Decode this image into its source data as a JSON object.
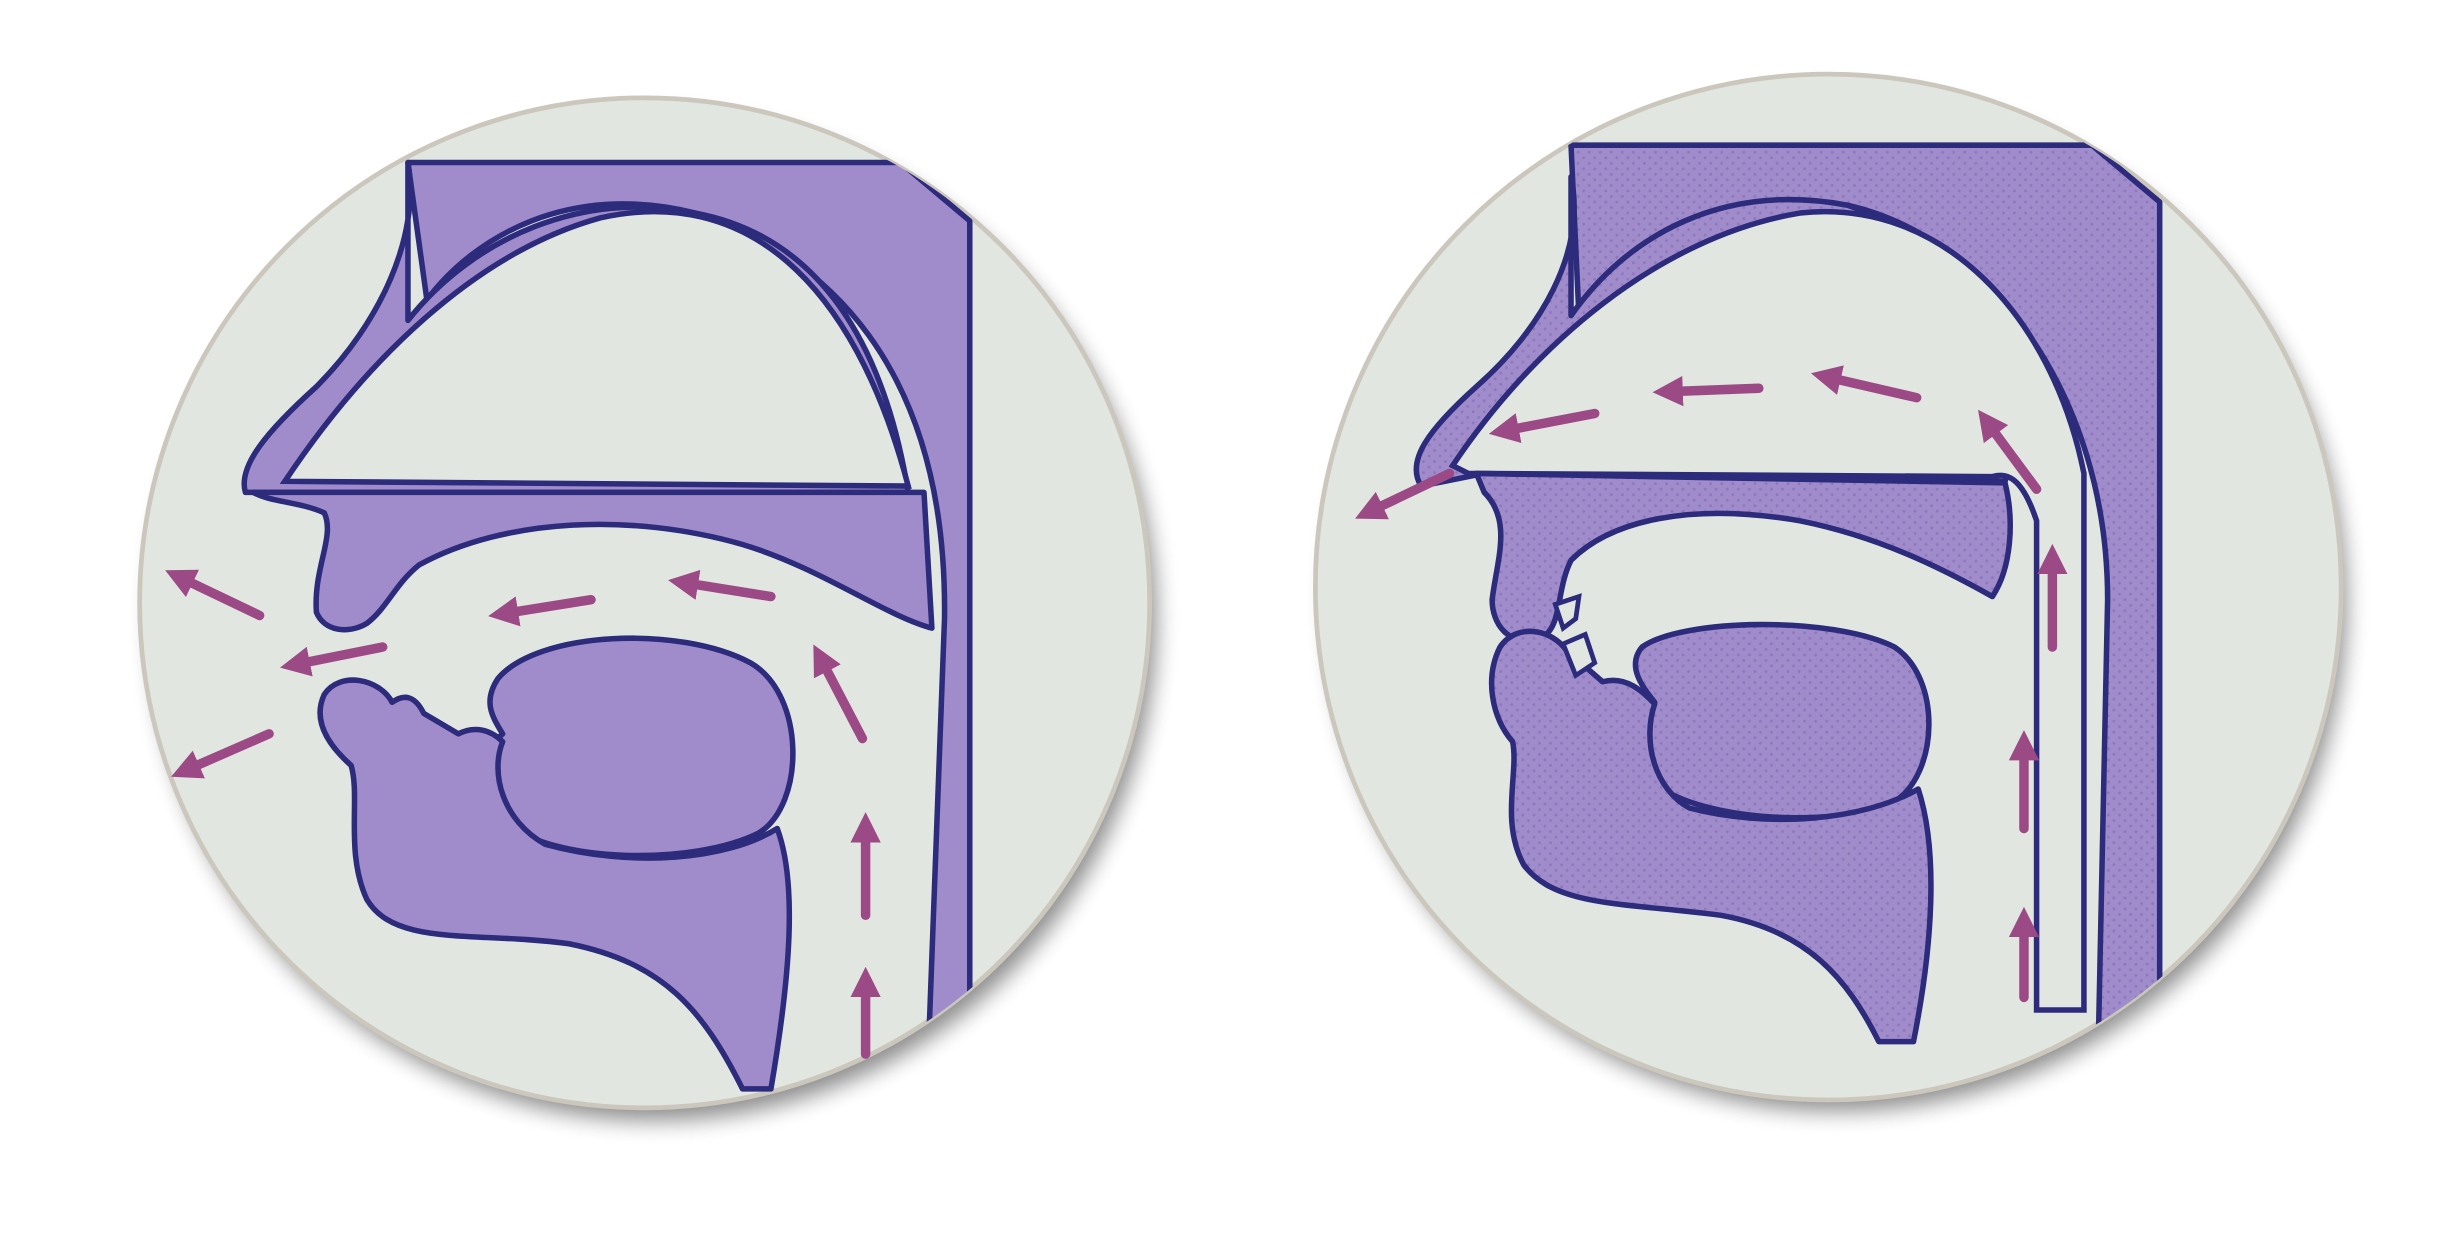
{
  "colors": {
    "background": "#ffffff",
    "disc": "#e1e6e0",
    "disc_rim": "#cbc7bc",
    "shadow": "#000000",
    "tissue": "#a08ccb",
    "tissue_dots": "#8e77bd",
    "outline": "#2d2b7c",
    "airflow_arrow": "#9c4a86"
  },
  "diagrams": [
    {
      "id": "oral-airflow",
      "nasal_passage_open": false,
      "airflow_exits": [
        "mouth"
      ]
    },
    {
      "id": "nasal-airflow",
      "nasal_passage_open": true,
      "airflow_exits": [
        "nose"
      ]
    }
  ],
  "icons": {
    "airflow_arrow": "arrow-icon"
  }
}
